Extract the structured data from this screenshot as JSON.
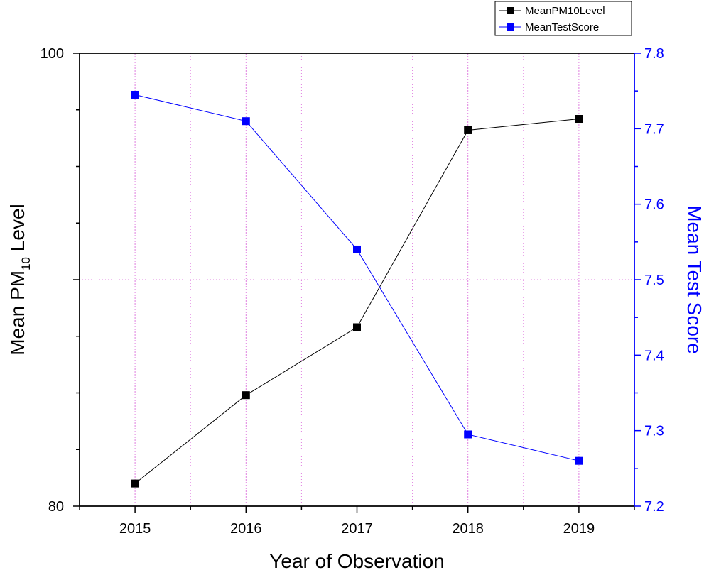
{
  "chart_data": {
    "type": "line",
    "x": [
      2015,
      2016,
      2017,
      2018,
      2019
    ],
    "xlabel": "Year of Observation",
    "xticks": [
      "2015",
      "2016",
      "2017",
      "2018",
      "2019"
    ],
    "xlim": [
      2014.5,
      2019.5
    ],
    "series": [
      {
        "name": "MeanPM10Level",
        "axis": "left",
        "color": "#000000",
        "values": [
          81.0,
          84.9,
          87.9,
          96.6,
          97.1
        ]
      },
      {
        "name": "MeanTestScore",
        "axis": "right",
        "color": "#0000ff",
        "values": [
          7.745,
          7.71,
          7.54,
          7.295,
          7.26
        ]
      }
    ],
    "y_left": {
      "label_parts": {
        "pre": "Mean PM",
        "sub": "10",
        "post": " Level"
      },
      "lim": [
        80,
        100
      ],
      "ticks": [
        "80",
        "100"
      ],
      "tick_values": [
        80,
        100
      ],
      "color": "#000000"
    },
    "y_right": {
      "label": "Mean Test Score",
      "lim": [
        7.2,
        7.8
      ],
      "ticks": [
        "7.2",
        "7.3",
        "7.4",
        "7.5",
        "7.6",
        "7.7",
        "7.8"
      ],
      "tick_values": [
        7.2,
        7.3,
        7.4,
        7.5,
        7.6,
        7.7,
        7.8
      ],
      "color": "#0000ff"
    },
    "grid": true,
    "grid_color": "#e080e0",
    "legend_position": "top-right"
  }
}
